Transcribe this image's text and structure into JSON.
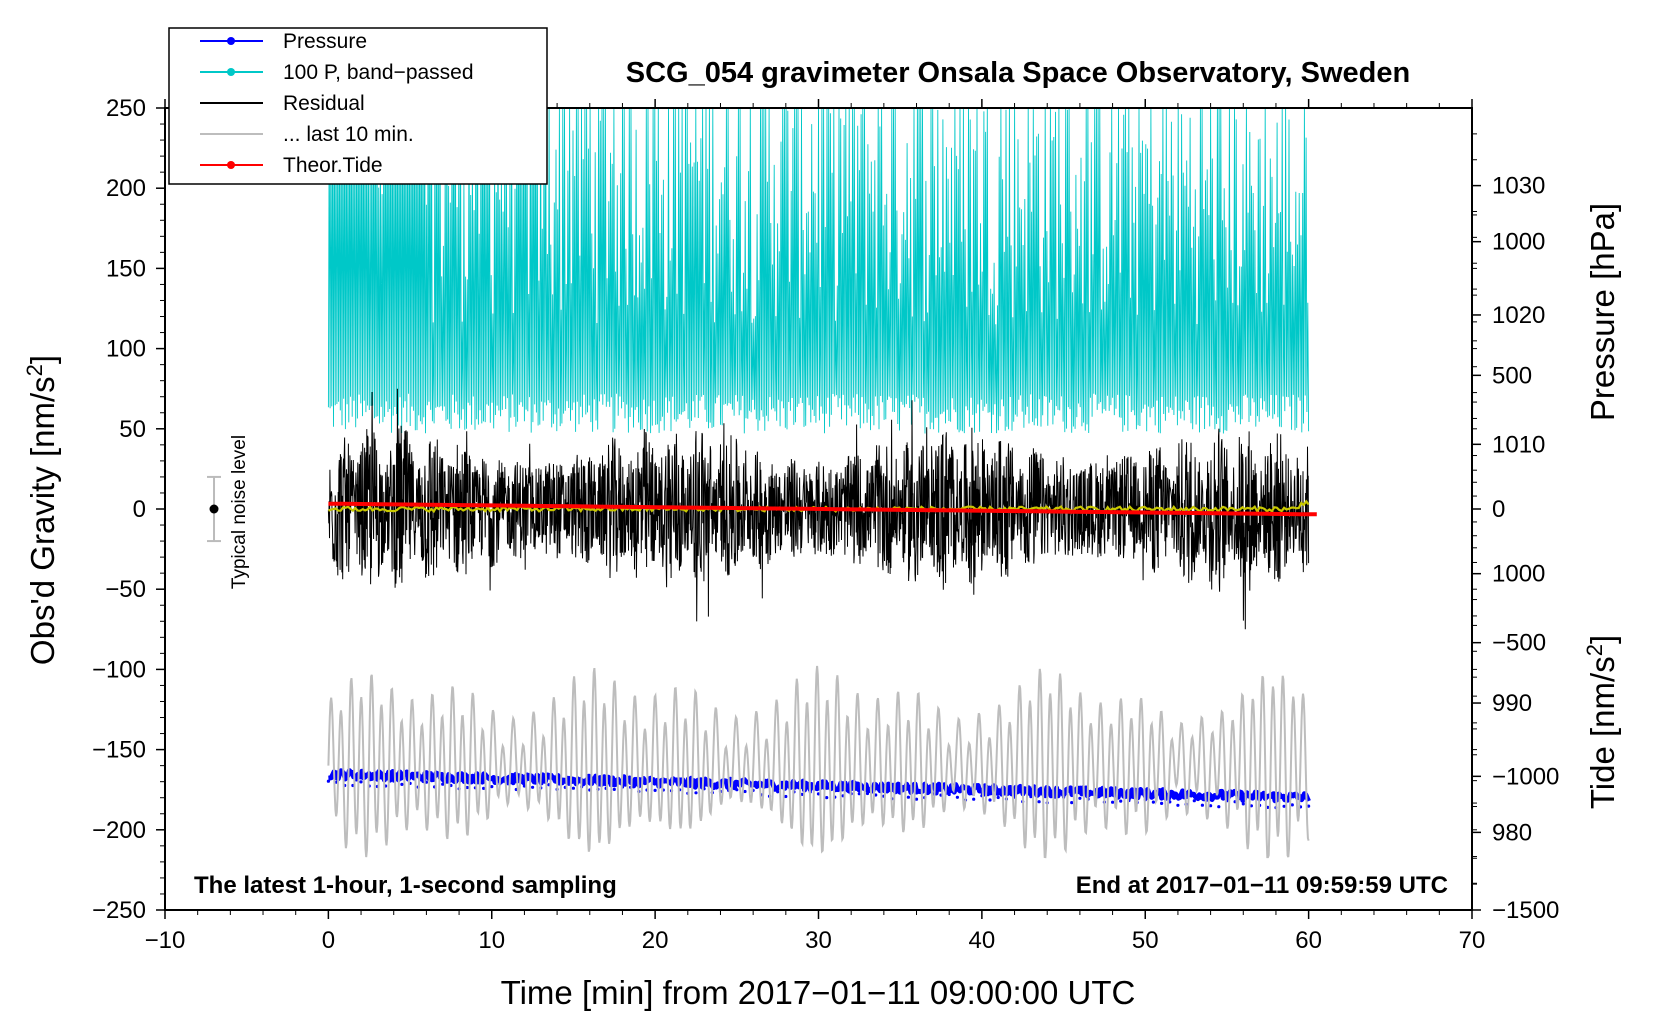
{
  "chart_data": {
    "type": "line",
    "title": "SCG_054 gravimeter Onsala Space Observatory, Sweden",
    "xlabel": "Time [min] from 2017−01−11 09:00:00 UTC",
    "ylabel_left": "Obs'd Gravity [nm/s",
    "ylabel_left_sup": "2",
    "ylabel_left_close": "]",
    "ylabel_right_pressure": "Pressure [hPa]",
    "ylabel_right_tide": "Tide [nm/s",
    "ylabel_right_tide_sup": "2",
    "ylabel_right_tide_close": "]",
    "xlim": [
      -10,
      70
    ],
    "ylim_left": [
      -250,
      250
    ],
    "x_ticks": [
      -10,
      0,
      10,
      20,
      30,
      40,
      50,
      60,
      70
    ],
    "x_tick_labels": [
      "−10",
      "0",
      "10",
      "20",
      "30",
      "40",
      "50",
      "60",
      "70"
    ],
    "y_left_ticks": [
      250,
      200,
      150,
      100,
      50,
      0,
      -50,
      -100,
      -150,
      -200,
      -250
    ],
    "y_left_tick_labels": [
      "250",
      "200",
      "150",
      "100",
      "50",
      "0",
      "−50",
      "−100",
      "−150",
      "−200",
      "−250"
    ],
    "pressure_axis": {
      "range": [
        974,
        1036
      ],
      "ticks": [
        980,
        990,
        1000,
        1010,
        1020,
        1030
      ],
      "tick_labels": [
        "980",
        "990",
        "1000",
        "1010",
        "1020",
        "1030"
      ]
    },
    "tide_axis": {
      "range": [
        -1500,
        1500
      ],
      "ticks": [
        1000,
        500,
        0,
        -500,
        -1000,
        -1500
      ],
      "tick_labels": [
        "1000",
        "500",
        "0",
        "−500",
        "−1000",
        "−1500"
      ]
    },
    "annotation_left": "The latest 1-hour, 1-second sampling",
    "annotation_right": "End at 2017−01−11 09:59:59 UTC",
    "noise_label": "Typical noise level",
    "noise_bar": {
      "x": -7,
      "center": 0,
      "low": -20,
      "high": 20
    },
    "legend": [
      {
        "label": "Pressure",
        "color": "#0000ff",
        "marker": true
      },
      {
        "label": "100 P, band−passed",
        "color": "#00c8c8",
        "marker": true
      },
      {
        "label": "Residual",
        "color": "#000000",
        "marker": false
      },
      {
        "label": "... last 10 min.",
        "color": "#bdbdbd",
        "marker": false
      },
      {
        "label": "Theor.Tide",
        "color": "#ff0000",
        "marker": true
      }
    ],
    "series": [
      {
        "name": "Pressure",
        "axis": "pressure",
        "color": "#0000ff",
        "x_range": [
          0,
          60
        ],
        "start": 984.5,
        "end": 982.7,
        "noise": 0.35
      },
      {
        "name": "100 P, band-passed",
        "axis": "left",
        "color": "#00c8c8",
        "x_range": [
          0,
          60
        ],
        "baseline": 55,
        "max": 250
      },
      {
        "name": "Residual",
        "axis": "left",
        "color": "#000000",
        "x_range": [
          0,
          60
        ],
        "amplitude": 55,
        "min": -75,
        "max": 75
      },
      {
        "name": "... last 10 min.",
        "axis": "left",
        "color": "#bdbdbd",
        "x_range": [
          0,
          60
        ],
        "center": -160,
        "min": -217,
        "max": -90
      },
      {
        "name": "Theor.Tide",
        "axis": "tide",
        "color": "#ff0000",
        "x_range": [
          0,
          60.5
        ],
        "start": 20,
        "end": -20
      },
      {
        "name": "Residual smoothed",
        "axis": "left",
        "color": "#c8c800",
        "x_range": [
          0,
          60
        ],
        "center": 0
      }
    ]
  }
}
